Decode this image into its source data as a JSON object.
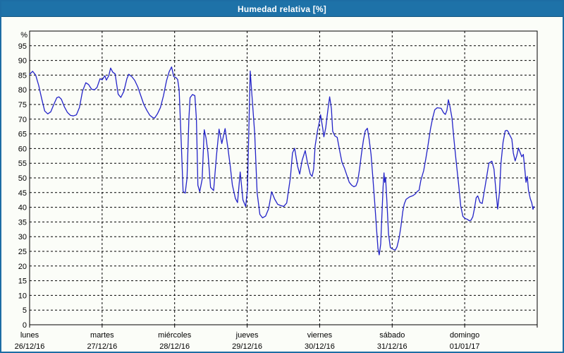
{
  "window": {
    "title": "Humedad relativa [%]"
  },
  "colors": {
    "header_bg": "#1e72a8",
    "header_text": "#ffffff",
    "page_bg": "#fbfdf8",
    "page_border": "#1d6da4",
    "plot_frame": "#000000",
    "grid": "#000000",
    "tick_text": "#000000",
    "line": "#2323c8"
  },
  "chart_data": {
    "type": "line",
    "title": "Humedad relativa [%]",
    "legend": "none",
    "grid": "dashed",
    "y_axis": {
      "unit_label": "%",
      "min": 0,
      "max": 100,
      "tick_start": 0,
      "tick_end": 95,
      "tick_step": 5
    },
    "x_axis": {
      "total_hours": 168,
      "days": [
        {
          "name": "lunes",
          "date": "26/12/16"
        },
        {
          "name": "martes",
          "date": "27/12/16"
        },
        {
          "name": "miércoles",
          "date": "28/12/16"
        },
        {
          "name": "jueves",
          "date": "29/12/16"
        },
        {
          "name": "viernes",
          "date": "30/12/16"
        },
        {
          "name": "sábado",
          "date": "31/12/16"
        },
        {
          "name": "domingo",
          "date": "01/01/17"
        }
      ]
    },
    "series": [
      {
        "name": "Humedad relativa",
        "color": "#2323c8",
        "points": [
          [
            0,
            85.3
          ],
          [
            1,
            86.3
          ],
          [
            2,
            85.0
          ],
          [
            3,
            81.5
          ],
          [
            4,
            77.0
          ],
          [
            5,
            72.8
          ],
          [
            6,
            71.8
          ],
          [
            7,
            72.5
          ],
          [
            8,
            75.0
          ],
          [
            9,
            77.3
          ],
          [
            9.7,
            77.6
          ],
          [
            10.5,
            76.8
          ],
          [
            11.5,
            74.2
          ],
          [
            12.5,
            72.3
          ],
          [
            13.5,
            71.3
          ],
          [
            14.5,
            71.1
          ],
          [
            15.5,
            71.5
          ],
          [
            16.5,
            74.0
          ],
          [
            17.5,
            79.5
          ],
          [
            18.6,
            82.4
          ],
          [
            19.5,
            81.8
          ],
          [
            20.5,
            80.2
          ],
          [
            21.5,
            80.0
          ],
          [
            22.3,
            80.8
          ],
          [
            23.3,
            83.8
          ],
          [
            24,
            83.4
          ],
          [
            24.9,
            84.8
          ],
          [
            25.4,
            83.3
          ],
          [
            26.2,
            84.8
          ],
          [
            26.8,
            87.4
          ],
          [
            27.5,
            86.0
          ],
          [
            28.3,
            85.4
          ],
          [
            29.3,
            78.5
          ],
          [
            30.2,
            77.4
          ],
          [
            31.2,
            79.5
          ],
          [
            32.2,
            83.8
          ],
          [
            32.8,
            85.3
          ],
          [
            33.8,
            84.5
          ],
          [
            34.8,
            83.2
          ],
          [
            35.8,
            81.0
          ],
          [
            36.8,
            78.0
          ],
          [
            37.8,
            75.0
          ],
          [
            38.8,
            73.0
          ],
          [
            39.8,
            71.3
          ],
          [
            40.8,
            70.5
          ],
          [
            41.4,
            70.4
          ],
          [
            42.3,
            71.8
          ],
          [
            43.3,
            74.0
          ],
          [
            44.3,
            78.0
          ],
          [
            45.3,
            83.0
          ],
          [
            46.2,
            86.2
          ],
          [
            47.0,
            87.8
          ],
          [
            47.7,
            84.5
          ],
          [
            48.4,
            84.2
          ],
          [
            49.0,
            83.5
          ],
          [
            49.5,
            80.0
          ],
          [
            50.2,
            62.0
          ],
          [
            50.8,
            45.4
          ],
          [
            51.5,
            44.8
          ],
          [
            52.1,
            50.0
          ],
          [
            52.7,
            70.0
          ],
          [
            53.1,
            77.3
          ],
          [
            53.9,
            78.4
          ],
          [
            54.7,
            78.0
          ],
          [
            55.2,
            70.0
          ],
          [
            55.7,
            47.5
          ],
          [
            56.3,
            45.3
          ],
          [
            57.1,
            49.5
          ],
          [
            57.8,
            66.4
          ],
          [
            58.4,
            63.5
          ],
          [
            59.0,
            58.8
          ],
          [
            59.9,
            46.8
          ],
          [
            60.9,
            45.7
          ],
          [
            61.8,
            57.2
          ],
          [
            62.7,
            66.6
          ],
          [
            63.6,
            61.7
          ],
          [
            64.7,
            66.8
          ],
          [
            65.7,
            59.6
          ],
          [
            66.4,
            54.0
          ],
          [
            67.1,
            47.6
          ],
          [
            68.1,
            43.0
          ],
          [
            68.8,
            41.6
          ],
          [
            69.7,
            52.0
          ],
          [
            70.6,
            42.5
          ],
          [
            71.5,
            40.3
          ],
          [
            72.1,
            46.0
          ],
          [
            73.0,
            86.4
          ],
          [
            73.6,
            78.0
          ],
          [
            74.5,
            65.0
          ],
          [
            75.3,
            45.0
          ],
          [
            76.2,
            37.6
          ],
          [
            77.1,
            36.4
          ],
          [
            78.1,
            37.0
          ],
          [
            79.1,
            39.5
          ],
          [
            80.1,
            45.3
          ],
          [
            81.1,
            42.8
          ],
          [
            82.1,
            41.0
          ],
          [
            83.1,
            40.6
          ],
          [
            84.1,
            40.3
          ],
          [
            85.1,
            41.5
          ],
          [
            86.3,
            50.1
          ],
          [
            87.0,
            58.5
          ],
          [
            87.7,
            60.1
          ],
          [
            88.7,
            54.0
          ],
          [
            89.4,
            51.3
          ],
          [
            90.2,
            56.0
          ],
          [
            91.2,
            59.3
          ],
          [
            92.0,
            55.0
          ],
          [
            92.9,
            51.3
          ],
          [
            93.5,
            50.5
          ],
          [
            94.0,
            53.0
          ],
          [
            94.5,
            60.9
          ],
          [
            95.3,
            66.1
          ],
          [
            96.0,
            69.5
          ],
          [
            96.3,
            71.5
          ],
          [
            97.0,
            67.0
          ],
          [
            97.4,
            64.0
          ],
          [
            98.0,
            67.0
          ],
          [
            98.7,
            73.0
          ],
          [
            99.3,
            77.6
          ],
          [
            99.9,
            73.5
          ],
          [
            100.3,
            65.9
          ],
          [
            101.0,
            64.3
          ],
          [
            101.8,
            63.8
          ],
          [
            102.7,
            58.9
          ],
          [
            103.4,
            55.3
          ],
          [
            104.2,
            53.3
          ],
          [
            105.0,
            50.9
          ],
          [
            105.8,
            48.5
          ],
          [
            106.6,
            47.5
          ],
          [
            107.3,
            47.0
          ],
          [
            108.0,
            47.3
          ],
          [
            108.6,
            48.9
          ],
          [
            109.2,
            53.0
          ],
          [
            109.8,
            58.0
          ],
          [
            110.5,
            63.0
          ],
          [
            111.1,
            66.0
          ],
          [
            111.8,
            66.9
          ],
          [
            112.4,
            63.0
          ],
          [
            113.0,
            58.0
          ],
          [
            113.6,
            50.0
          ],
          [
            114.2,
            42.0
          ],
          [
            114.8,
            33.0
          ],
          [
            115.3,
            26.0
          ],
          [
            115.7,
            23.8
          ],
          [
            116.2,
            27.5
          ],
          [
            116.5,
            34.9
          ],
          [
            117.0,
            47.0
          ],
          [
            117.3,
            51.7
          ],
          [
            117.5,
            48.5
          ],
          [
            117.8,
            50.2
          ],
          [
            118.3,
            41.0
          ],
          [
            118.8,
            30.9
          ],
          [
            119.4,
            26.3
          ],
          [
            120.1,
            25.8
          ],
          [
            121.0,
            25.4
          ],
          [
            121.6,
            26.5
          ],
          [
            122.3,
            29.5
          ],
          [
            122.9,
            33.5
          ],
          [
            123.5,
            38.5
          ],
          [
            124.0,
            41.1
          ],
          [
            124.6,
            42.7
          ],
          [
            125.7,
            43.5
          ],
          [
            126.9,
            44.0
          ],
          [
            127.7,
            44.6
          ],
          [
            128.3,
            45.4
          ],
          [
            128.9,
            45.8
          ],
          [
            129.5,
            49.2
          ],
          [
            130.4,
            52.4
          ],
          [
            131.1,
            56.4
          ],
          [
            131.8,
            60.8
          ],
          [
            132.7,
            66.8
          ],
          [
            133.4,
            70.4
          ],
          [
            134.1,
            73.2
          ],
          [
            134.9,
            73.9
          ],
          [
            136.2,
            73.7
          ],
          [
            137.0,
            72.2
          ],
          [
            137.6,
            71.6
          ],
          [
            138.1,
            73.0
          ],
          [
            138.6,
            76.6
          ],
          [
            139.1,
            74.5
          ],
          [
            139.8,
            70.4
          ],
          [
            140.4,
            63.6
          ],
          [
            141.1,
            56.4
          ],
          [
            142.0,
            47.6
          ],
          [
            142.7,
            40.3
          ],
          [
            143.4,
            36.9
          ],
          [
            144.1,
            36.2
          ],
          [
            144.9,
            35.9
          ],
          [
            145.5,
            35.4
          ],
          [
            146.1,
            35.6
          ],
          [
            146.7,
            36.8
          ],
          [
            147.2,
            39.5
          ],
          [
            147.8,
            43.2
          ],
          [
            148.3,
            43.9
          ],
          [
            149.1,
            41.6
          ],
          [
            149.8,
            41.3
          ],
          [
            150.6,
            46.1
          ],
          [
            151.3,
            50.5
          ],
          [
            152.0,
            55.0
          ],
          [
            153.0,
            55.7
          ],
          [
            153.7,
            53.0
          ],
          [
            154.3,
            46.0
          ],
          [
            154.9,
            39.4
          ],
          [
            155.5,
            45.0
          ],
          [
            156.0,
            55.0
          ],
          [
            156.7,
            62.2
          ],
          [
            157.4,
            66.0
          ],
          [
            158.0,
            66.2
          ],
          [
            158.4,
            65.7
          ],
          [
            159.0,
            64.4
          ],
          [
            159.6,
            63.2
          ],
          [
            160.1,
            58.5
          ],
          [
            160.7,
            55.8
          ],
          [
            161.2,
            57.5
          ],
          [
            161.8,
            60.2
          ],
          [
            162.4,
            58.5
          ],
          [
            162.9,
            57.2
          ],
          [
            163.4,
            58.0
          ],
          [
            163.9,
            53.0
          ],
          [
            164.3,
            48.5
          ],
          [
            164.7,
            50.5
          ],
          [
            165.1,
            45.8
          ],
          [
            165.7,
            43.0
          ],
          [
            166.2,
            41.5
          ],
          [
            166.6,
            39.3
          ],
          [
            166.9,
            40.3
          ]
        ]
      }
    ]
  }
}
